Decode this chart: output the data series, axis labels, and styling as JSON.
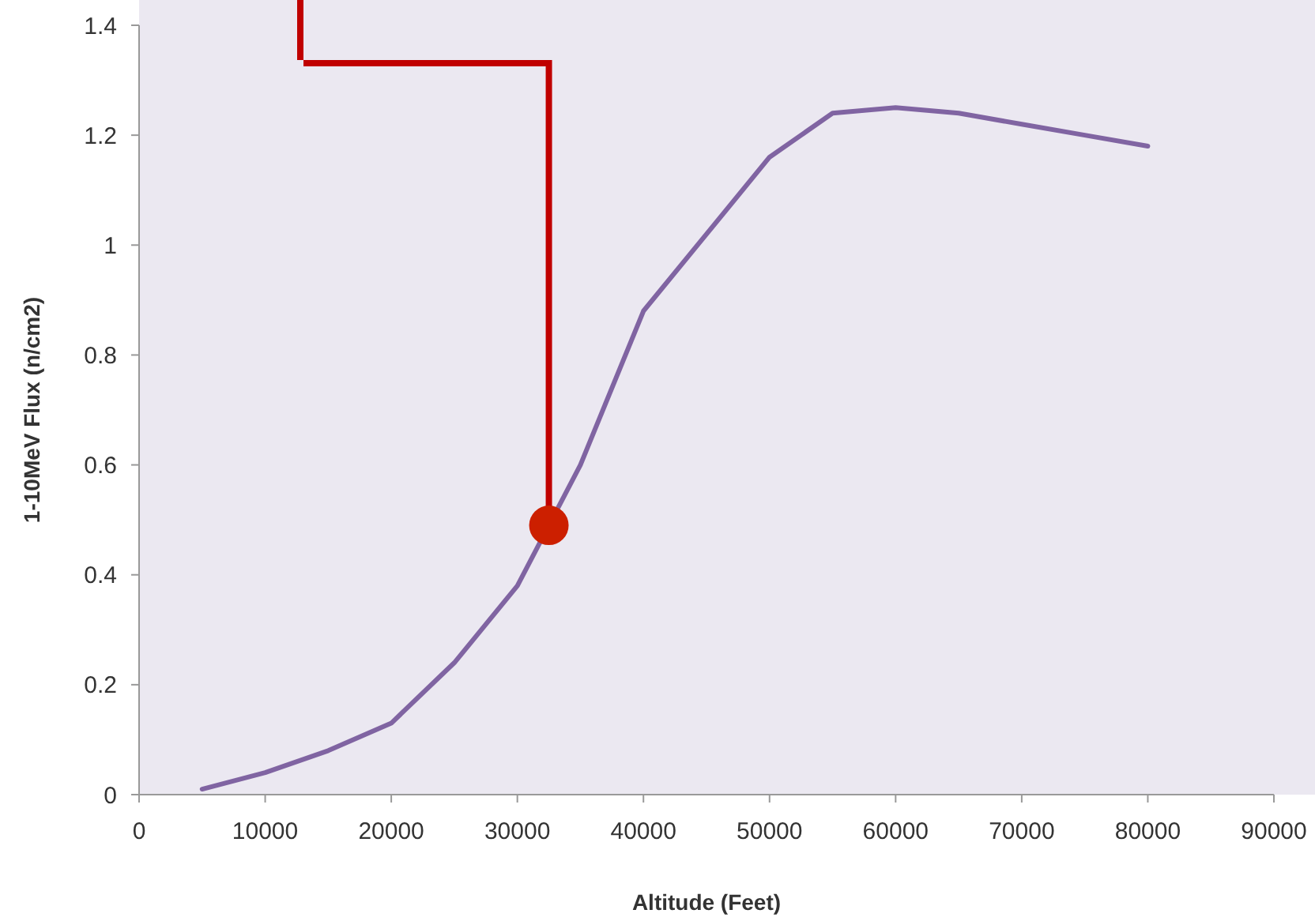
{
  "chart_data": {
    "type": "line",
    "xlabel": "Altitude (Feet)",
    "ylabel": "1-10MeV Flux (n/cm2)",
    "xlim": [
      0,
      90000
    ],
    "xticks": [
      0,
      10000,
      20000,
      30000,
      40000,
      50000,
      60000,
      70000,
      80000,
      90000
    ],
    "ylim": [
      0,
      1.4
    ],
    "yticks": [
      0,
      0.2,
      0.4,
      0.6,
      0.8,
      1,
      1.2,
      1.4
    ],
    "grid": false,
    "series": [
      {
        "color": "#8064a2",
        "x": [
          5000,
          10000,
          15000,
          20000,
          25000,
          30000,
          35000,
          40000,
          45000,
          50000,
          55000,
          60000,
          65000,
          70000,
          75000,
          80000
        ],
        "values": [
          0.01,
          0.04,
          0.08,
          0.13,
          0.24,
          0.38,
          0.6,
          0.88,
          1.02,
          1.16,
          1.24,
          1.25,
          1.24,
          1.22,
          1.2,
          1.18
        ]
      },
      {
        "type": "scatter",
        "color": "#cc1f00",
        "marker": "circle",
        "x": [
          32500
        ],
        "values": [
          0.49
        ]
      }
    ]
  }
}
